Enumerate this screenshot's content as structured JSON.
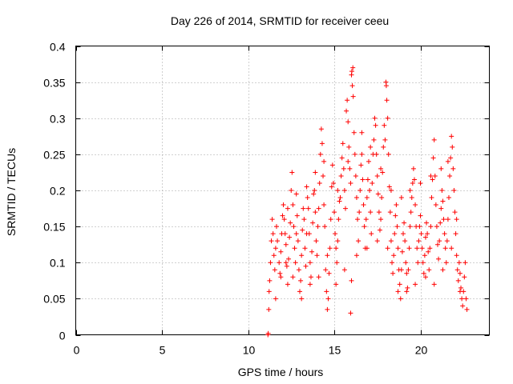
{
  "chart_data": {
    "type": "scatter",
    "title": "Day 226 of 2014, SRMTID for receiver ceeu",
    "xlabel": "GPS time / hours",
    "ylabel": "SRMTID / TECUs",
    "xlim": [
      0,
      24
    ],
    "ylim": [
      0,
      0.4
    ],
    "grid": true,
    "marker": "plus",
    "color": "#ff0000",
    "x_ticks": [
      0,
      5,
      10,
      15,
      20
    ],
    "x_tick_labels": [
      "0",
      "5",
      "10",
      "15",
      "20"
    ],
    "y_ticks": [
      0,
      0.05,
      0.1,
      0.15,
      0.2,
      0.25,
      0.3,
      0.35,
      0.4
    ],
    "y_tick_labels": [
      "0",
      "0.05",
      "0.1",
      "0.15",
      "0.2",
      "0.25",
      "0.3",
      "0.35",
      "0.4"
    ],
    "series": [
      {
        "name": "SRMTID",
        "points": [
          [
            11.15,
            0.0
          ],
          [
            11.17,
            0.002
          ],
          [
            11.2,
            0.035
          ],
          [
            11.22,
            0.06
          ],
          [
            11.25,
            0.075
          ],
          [
            11.3,
            0.1
          ],
          [
            11.35,
            0.13
          ],
          [
            11.4,
            0.16
          ],
          [
            11.45,
            0.14
          ],
          [
            11.5,
            0.11
          ],
          [
            11.55,
            0.09
          ],
          [
            11.6,
            0.12
          ],
          [
            11.65,
            0.15
          ],
          [
            11.7,
            0.13
          ],
          [
            11.8,
            0.1
          ],
          [
            11.85,
            0.085
          ],
          [
            11.9,
            0.115
          ],
          [
            11.95,
            0.14
          ],
          [
            12.0,
            0.165
          ],
          [
            12.05,
            0.18
          ],
          [
            12.1,
            0.16
          ],
          [
            12.15,
            0.14
          ],
          [
            12.2,
            0.125
          ],
          [
            12.25,
            0.095
          ],
          [
            12.3,
            0.07
          ],
          [
            12.35,
            0.105
          ],
          [
            12.4,
            0.135
          ],
          [
            12.45,
            0.155
          ],
          [
            12.5,
            0.2
          ],
          [
            12.55,
            0.225
          ],
          [
            12.6,
            0.18
          ],
          [
            12.65,
            0.15
          ],
          [
            12.7,
            0.12
          ],
          [
            12.75,
            0.1
          ],
          [
            12.8,
            0.14
          ],
          [
            12.85,
            0.165
          ],
          [
            12.9,
            0.13
          ],
          [
            12.95,
            0.09
          ],
          [
            13.0,
            0.06
          ],
          [
            13.05,
            0.075
          ],
          [
            13.1,
            0.11
          ],
          [
            13.15,
            0.145
          ],
          [
            13.2,
            0.175
          ],
          [
            13.25,
            0.16
          ],
          [
            13.3,
            0.12
          ],
          [
            13.35,
            0.095
          ],
          [
            13.4,
            0.14
          ],
          [
            13.45,
            0.19
          ],
          [
            13.5,
            0.175
          ],
          [
            13.55,
            0.14
          ],
          [
            13.6,
            0.1
          ],
          [
            13.65,
            0.08
          ],
          [
            13.7,
            0.115
          ],
          [
            13.75,
            0.155
          ],
          [
            13.8,
            0.195
          ],
          [
            13.85,
            0.2
          ],
          [
            13.9,
            0.17
          ],
          [
            13.95,
            0.13
          ],
          [
            14.0,
            0.11
          ],
          [
            14.05,
            0.15
          ],
          [
            14.1,
            0.175
          ],
          [
            14.15,
            0.21
          ],
          [
            14.2,
            0.25
          ],
          [
            14.25,
            0.285
          ],
          [
            14.3,
            0.265
          ],
          [
            14.35,
            0.22
          ],
          [
            14.4,
            0.18
          ],
          [
            14.45,
            0.15
          ],
          [
            14.5,
            0.09
          ],
          [
            14.55,
            0.06
          ],
          [
            14.6,
            0.035
          ],
          [
            14.65,
            0.05
          ],
          [
            14.7,
            0.085
          ],
          [
            14.75,
            0.12
          ],
          [
            14.8,
            0.16
          ],
          [
            14.85,
            0.205
          ],
          [
            14.9,
            0.235
          ],
          [
            14.95,
            0.21
          ],
          [
            15.0,
            0.17
          ],
          [
            15.05,
            0.14
          ],
          [
            15.1,
            0.12
          ],
          [
            15.15,
            0.1
          ],
          [
            15.2,
            0.13
          ],
          [
            15.25,
            0.16
          ],
          [
            15.3,
            0.185
          ],
          [
            15.35,
            0.19
          ],
          [
            15.4,
            0.22
          ],
          [
            15.45,
            0.245
          ],
          [
            15.5,
            0.265
          ],
          [
            15.55,
            0.23
          ],
          [
            15.6,
            0.2
          ],
          [
            15.65,
            0.175
          ],
          [
            15.7,
            0.31
          ],
          [
            15.75,
            0.325
          ],
          [
            15.8,
            0.295
          ],
          [
            15.85,
            0.26
          ],
          [
            15.9,
            0.23
          ],
          [
            15.95,
            0.21
          ],
          [
            16.0,
            0.36
          ],
          [
            16.02,
            0.365
          ],
          [
            16.05,
            0.345
          ],
          [
            16.08,
            0.37
          ],
          [
            16.1,
            0.33
          ],
          [
            16.15,
            0.28
          ],
          [
            16.2,
            0.25
          ],
          [
            16.25,
            0.22
          ],
          [
            16.3,
            0.19
          ],
          [
            16.35,
            0.16
          ],
          [
            16.4,
            0.13
          ],
          [
            16.0,
            0.075
          ],
          [
            15.95,
            0.03
          ],
          [
            16.45,
            0.17
          ],
          [
            16.5,
            0.2
          ],
          [
            16.55,
            0.235
          ],
          [
            16.6,
            0.25
          ],
          [
            16.65,
            0.215
          ],
          [
            16.7,
            0.18
          ],
          [
            16.75,
            0.15
          ],
          [
            16.8,
            0.12
          ],
          [
            16.85,
            0.16
          ],
          [
            16.9,
            0.19
          ],
          [
            16.95,
            0.215
          ],
          [
            17.0,
            0.24
          ],
          [
            17.05,
            0.2
          ],
          [
            17.1,
            0.17
          ],
          [
            17.15,
            0.14
          ],
          [
            17.2,
            0.21
          ],
          [
            17.25,
            0.25
          ],
          [
            17.3,
            0.27
          ],
          [
            17.35,
            0.3
          ],
          [
            17.4,
            0.29
          ],
          [
            17.45,
            0.25
          ],
          [
            17.5,
            0.22
          ],
          [
            17.55,
            0.195
          ],
          [
            17.6,
            0.17
          ],
          [
            17.65,
            0.145
          ],
          [
            17.7,
            0.16
          ],
          [
            17.75,
            0.19
          ],
          [
            17.8,
            0.225
          ],
          [
            17.85,
            0.26
          ],
          [
            17.9,
            0.29
          ],
          [
            17.95,
            0.27
          ],
          [
            18.0,
            0.35
          ],
          [
            18.02,
            0.345
          ],
          [
            18.05,
            0.325
          ],
          [
            18.1,
            0.3
          ],
          [
            18.15,
            0.25
          ],
          [
            18.2,
            0.205
          ],
          [
            18.25,
            0.17
          ],
          [
            18.3,
            0.13
          ],
          [
            18.35,
            0.1
          ],
          [
            18.4,
            0.085
          ],
          [
            18.45,
            0.11
          ],
          [
            18.5,
            0.14
          ],
          [
            18.55,
            0.165
          ],
          [
            18.6,
            0.18
          ],
          [
            18.65,
            0.15
          ],
          [
            18.7,
            0.12
          ],
          [
            18.75,
            0.09
          ],
          [
            18.8,
            0.07
          ],
          [
            18.85,
            0.05
          ],
          [
            18.9,
            0.09
          ],
          [
            18.95,
            0.115
          ],
          [
            19.0,
            0.14
          ],
          [
            19.05,
            0.155
          ],
          [
            19.1,
            0.13
          ],
          [
            19.15,
            0.1
          ],
          [
            19.2,
            0.085
          ],
          [
            19.25,
            0.065
          ],
          [
            19.3,
            0.09
          ],
          [
            19.35,
            0.12
          ],
          [
            19.4,
            0.15
          ],
          [
            19.45,
            0.17
          ],
          [
            19.5,
            0.19
          ],
          [
            19.55,
            0.21
          ],
          [
            19.6,
            0.23
          ],
          [
            19.65,
            0.215
          ],
          [
            19.7,
            0.18
          ],
          [
            19.75,
            0.15
          ],
          [
            19.8,
            0.12
          ],
          [
            19.85,
            0.1
          ],
          [
            19.9,
            0.13
          ],
          [
            19.95,
            0.15
          ],
          [
            20.0,
            0.165
          ],
          [
            20.05,
            0.14
          ],
          [
            20.1,
            0.12
          ],
          [
            20.15,
            0.1
          ],
          [
            20.2,
            0.085
          ],
          [
            20.25,
            0.11
          ],
          [
            20.3,
            0.135
          ],
          [
            20.35,
            0.155
          ],
          [
            20.4,
            0.14
          ],
          [
            20.45,
            0.115
          ],
          [
            20.5,
            0.09
          ],
          [
            20.55,
            0.12
          ],
          [
            20.6,
            0.15
          ],
          [
            20.65,
            0.19
          ],
          [
            20.7,
            0.215
          ],
          [
            20.75,
            0.245
          ],
          [
            20.8,
            0.27
          ],
          [
            20.85,
            0.22
          ],
          [
            20.9,
            0.18
          ],
          [
            20.95,
            0.15
          ],
          [
            21.0,
            0.125
          ],
          [
            21.05,
            0.105
          ],
          [
            21.1,
            0.13
          ],
          [
            21.15,
            0.155
          ],
          [
            21.2,
            0.175
          ],
          [
            21.25,
            0.2
          ],
          [
            21.3,
            0.185
          ],
          [
            21.35,
            0.16
          ],
          [
            21.4,
            0.14
          ],
          [
            21.45,
            0.12
          ],
          [
            21.5,
            0.1
          ],
          [
            21.55,
            0.13
          ],
          [
            21.6,
            0.16
          ],
          [
            21.65,
            0.19
          ],
          [
            21.7,
            0.22
          ],
          [
            21.75,
            0.245
          ],
          [
            21.8,
            0.275
          ],
          [
            21.85,
            0.26
          ],
          [
            21.9,
            0.23
          ],
          [
            21.95,
            0.2
          ],
          [
            22.0,
            0.17
          ],
          [
            22.05,
            0.14
          ],
          [
            22.1,
            0.11
          ],
          [
            22.15,
            0.09
          ],
          [
            22.2,
            0.075
          ],
          [
            22.25,
            0.1
          ],
          [
            22.3,
            0.085
          ],
          [
            22.35,
            0.065
          ],
          [
            22.4,
            0.05
          ],
          [
            22.45,
            0.04
          ],
          [
            22.5,
            0.06
          ],
          [
            22.55,
            0.08
          ],
          [
            22.6,
            0.1
          ],
          [
            22.65,
            0.05
          ],
          [
            22.7,
            0.035
          ],
          [
            11.6,
            0.05
          ],
          [
            11.9,
            0.08
          ],
          [
            12.2,
            0.1
          ],
          [
            12.6,
            0.08
          ],
          [
            13.1,
            0.05
          ],
          [
            13.6,
            0.07
          ],
          [
            14.1,
            0.08
          ],
          [
            14.6,
            0.11
          ],
          [
            15.1,
            0.07
          ],
          [
            15.6,
            0.09
          ],
          [
            16.3,
            0.11
          ],
          [
            16.9,
            0.12
          ],
          [
            17.5,
            0.13
          ],
          [
            18.1,
            0.12
          ],
          [
            18.7,
            0.06
          ],
          [
            19.2,
            0.06
          ],
          [
            19.7,
            0.07
          ],
          [
            20.3,
            0.08
          ],
          [
            20.8,
            0.07
          ],
          [
            21.3,
            0.09
          ],
          [
            21.8,
            0.12
          ],
          [
            22.3,
            0.06
          ],
          [
            12.3,
            0.175
          ],
          [
            12.8,
            0.195
          ],
          [
            13.4,
            0.205
          ],
          [
            13.9,
            0.225
          ],
          [
            14.4,
            0.24
          ],
          [
            15.2,
            0.2
          ],
          [
            15.8,
            0.24
          ],
          [
            16.6,
            0.28
          ],
          [
            17.1,
            0.26
          ],
          [
            17.7,
            0.23
          ],
          [
            18.3,
            0.2
          ],
          [
            18.9,
            0.19
          ],
          [
            19.4,
            0.2
          ],
          [
            20.0,
            0.21
          ],
          [
            20.6,
            0.22
          ],
          [
            21.2,
            0.23
          ],
          [
            21.6,
            0.24
          ],
          [
            22.1,
            0.16
          ]
        ]
      }
    ]
  }
}
